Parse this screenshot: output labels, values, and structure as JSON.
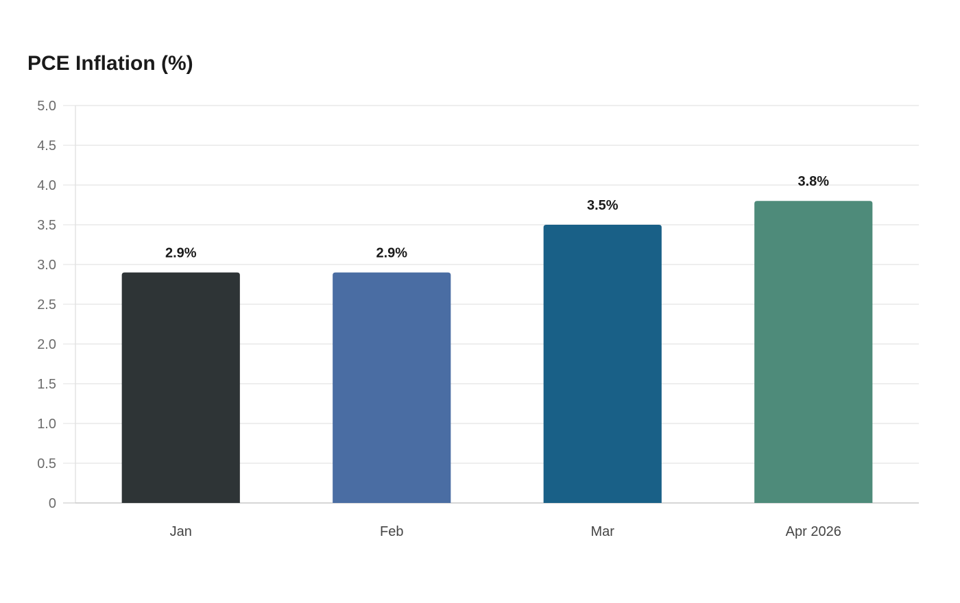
{
  "chart_data": {
    "type": "bar",
    "title": "PCE Inflation (%)",
    "categories": [
      "Jan",
      "Feb",
      "Mar",
      "Apr 2026"
    ],
    "values": [
      2.9,
      2.9,
      3.5,
      3.8
    ],
    "data_labels": [
      "2.9%",
      "2.9%",
      "3.5%",
      "3.8%"
    ],
    "colors": [
      "#2e3436",
      "#4a6da3",
      "#196087",
      "#4e8b7a"
    ],
    "ylim": [
      0,
      5.0
    ],
    "yticks": [
      0,
      0.5,
      1.0,
      1.5,
      2.0,
      2.5,
      3.0,
      3.5,
      4.0,
      4.5,
      5.0
    ],
    "ytick_labels": [
      "0",
      "0.5",
      "1.0",
      "1.5",
      "2.0",
      "2.5",
      "3.0",
      "3.5",
      "4.0",
      "4.5",
      "5.0"
    ],
    "xlabel": "",
    "ylabel": "",
    "grid": true,
    "legend": false
  }
}
